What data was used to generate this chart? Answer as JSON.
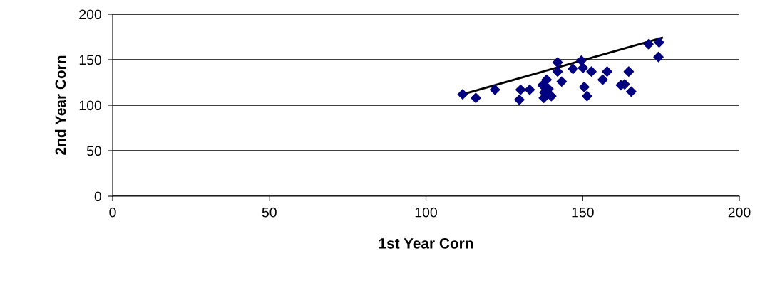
{
  "chart_data": {
    "type": "scatter",
    "xlabel": "1st Year Corn",
    "ylabel": "2nd Year Corn",
    "xlim": [
      0,
      200
    ],
    "xticks": [
      0,
      50,
      100,
      150,
      200
    ],
    "ylim": [
      0,
      200
    ],
    "yticks": [
      0,
      50,
      100,
      150,
      200
    ],
    "grid": "y",
    "marker": "diamond",
    "series": [
      {
        "color": "#000080",
        "x": [
          111.7,
          115.9,
          122,
          130.2,
          129.8,
          133.1,
          138.5,
          137.2,
          139.1,
          137.6,
          140.0,
          137.8,
          142.0,
          142.0,
          143.3,
          146.9,
          149.6,
          150.1,
          152.8,
          150.5,
          151.4,
          156.4,
          157.8,
          162.2,
          163.4,
          164.7,
          165.5,
          171,
          174.4,
          174.2
        ],
        "values": [
          112,
          108,
          117,
          117,
          106,
          117,
          128,
          122,
          118,
          108,
          110,
          114,
          147,
          137,
          126,
          140,
          149,
          141,
          137,
          120,
          110,
          128,
          137,
          122,
          123,
          137,
          115,
          167,
          169,
          153
        ]
      },
      {
        "type": "line",
        "marker": "none",
        "color": "#000000",
        "x": [
          111.7,
          175.3
        ],
        "values": [
          112,
          174
        ]
      }
    ]
  }
}
